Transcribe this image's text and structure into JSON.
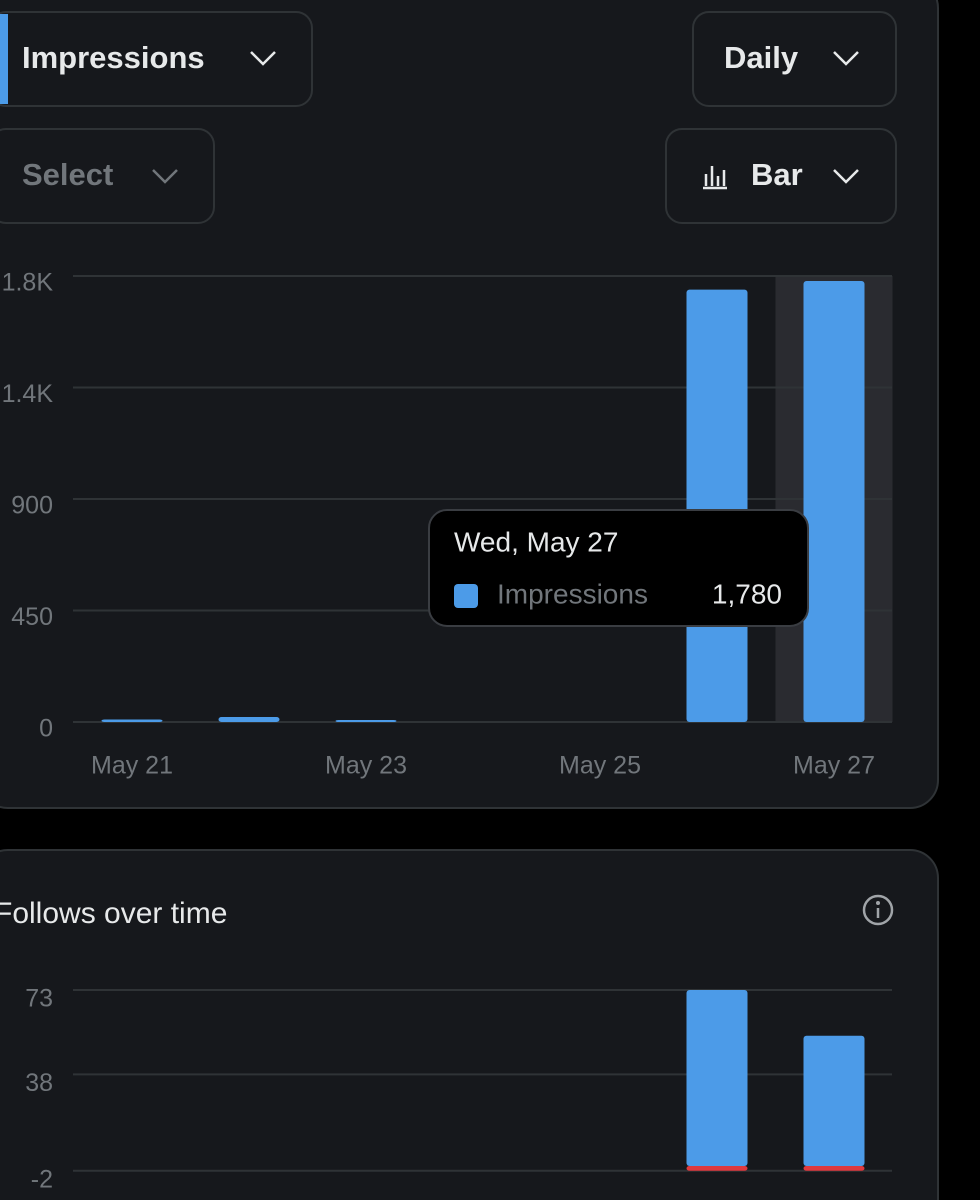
{
  "controls": {
    "metric": "Impressions",
    "interval": "Daily",
    "select": "Select",
    "chart_type": "Bar"
  },
  "chart_data": [
    {
      "type": "bar",
      "categories": [
        "May 21",
        null,
        "May 23",
        null,
        "May 25",
        null,
        "May 27"
      ],
      "series": [
        {
          "name": "Impressions",
          "color": "#4c9be8",
          "values": [
            10,
            20,
            8,
            0,
            0,
            1745,
            1780
          ],
          "value_labels": [
            null,
            null,
            null,
            null,
            null,
            null,
            "1,780"
          ]
        }
      ],
      "ylim": [
        0,
        1800
      ],
      "yticks": [
        0,
        450,
        900,
        {
          "value": 1350,
          "label": "1.4K"
        },
        {
          "value": 1800,
          "label": "1.8K"
        }
      ],
      "grid": true,
      "tooltip_title": "Wed, May 27"
    },
    {
      "type": "bar",
      "title": "Follows over time",
      "stacked": true,
      "series": [
        {
          "color": "#4c9be8",
          "values": [
            0,
            0,
            0,
            0,
            0,
            73,
            54
          ]
        },
        {
          "color": "#e0393e",
          "values": [
            0,
            0,
            0,
            0,
            0,
            -2,
            -2
          ]
        }
      ],
      "ylim": [
        -5,
        73
      ],
      "yticks": [
        73,
        38,
        -2
      ],
      "grid": true
    }
  ]
}
